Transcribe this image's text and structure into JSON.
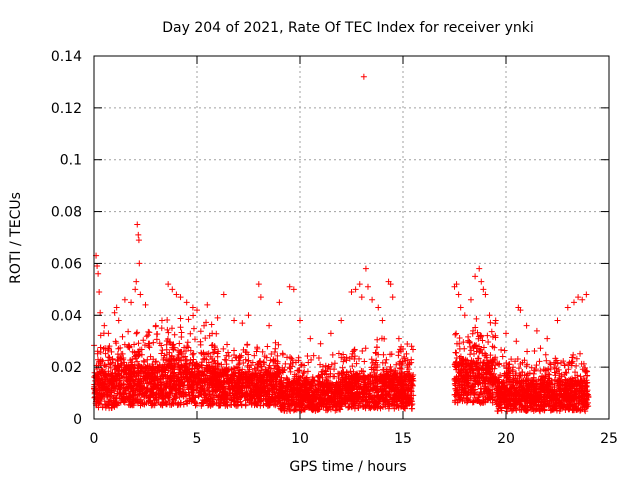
{
  "chart_data": {
    "type": "scatter",
    "title": "Day 204 of 2021, Rate Of TEC Index for receiver ynki",
    "xlabel": "GPS time / hours",
    "ylabel": "ROTI / TECUs",
    "xlim": [
      0,
      25
    ],
    "ylim": [
      0,
      0.14
    ],
    "xticks": [
      0,
      5,
      10,
      15,
      20,
      25
    ],
    "yticks": [
      0,
      0.02,
      0.04,
      0.06,
      0.08,
      0.1,
      0.12,
      0.14
    ],
    "xtick_labels": [
      "0",
      "5",
      "10",
      "15",
      "20",
      "25"
    ],
    "ytick_labels": [
      "0",
      "0.02",
      "0.04",
      "0.06",
      "0.08",
      "0.1",
      "0.12",
      "0.14"
    ],
    "grid": true,
    "marker": "+",
    "color": "#ff0000",
    "series": [
      {
        "name": "ROTI",
        "points": [
          [
            0.1,
            0.063
          ],
          [
            0.15,
            0.059
          ],
          [
            0.2,
            0.056
          ],
          [
            0.25,
            0.049
          ],
          [
            0.3,
            0.041
          ],
          [
            0.5,
            0.036
          ],
          [
            0.7,
            0.033
          ],
          [
            1.0,
            0.041
          ],
          [
            1.1,
            0.043
          ],
          [
            1.2,
            0.038
          ],
          [
            1.5,
            0.046
          ],
          [
            1.8,
            0.045
          ],
          [
            2.0,
            0.05
          ],
          [
            2.05,
            0.053
          ],
          [
            2.1,
            0.075
          ],
          [
            2.15,
            0.071
          ],
          [
            2.18,
            0.069
          ],
          [
            2.2,
            0.06
          ],
          [
            2.25,
            0.048
          ],
          [
            2.5,
            0.044
          ],
          [
            3.0,
            0.036
          ],
          [
            3.3,
            0.038
          ],
          [
            3.6,
            0.052
          ],
          [
            3.8,
            0.05
          ],
          [
            4.0,
            0.048
          ],
          [
            4.2,
            0.047
          ],
          [
            4.5,
            0.045
          ],
          [
            4.8,
            0.043
          ],
          [
            5.0,
            0.042
          ],
          [
            5.5,
            0.044
          ],
          [
            6.0,
            0.039
          ],
          [
            6.3,
            0.048
          ],
          [
            6.8,
            0.038
          ],
          [
            7.2,
            0.037
          ],
          [
            7.5,
            0.04
          ],
          [
            8.0,
            0.052
          ],
          [
            8.1,
            0.047
          ],
          [
            8.5,
            0.036
          ],
          [
            9.0,
            0.045
          ],
          [
            9.5,
            0.051
          ],
          [
            9.7,
            0.05
          ],
          [
            10.0,
            0.038
          ],
          [
            10.5,
            0.031
          ],
          [
            11.0,
            0.029
          ],
          [
            11.5,
            0.033
          ],
          [
            12.0,
            0.038
          ],
          [
            12.5,
            0.049
          ],
          [
            12.7,
            0.05
          ],
          [
            12.9,
            0.052
          ],
          [
            13.0,
            0.047
          ],
          [
            13.1,
            0.132
          ],
          [
            13.2,
            0.058
          ],
          [
            13.3,
            0.051
          ],
          [
            13.5,
            0.046
          ],
          [
            13.8,
            0.043
          ],
          [
            14.0,
            0.038
          ],
          [
            14.3,
            0.053
          ],
          [
            14.4,
            0.052
          ],
          [
            14.5,
            0.047
          ],
          [
            14.8,
            0.031
          ],
          [
            15.0,
            0.027
          ],
          [
            15.3,
            0.021
          ],
          [
            17.5,
            0.051
          ],
          [
            17.6,
            0.052
          ],
          [
            17.7,
            0.048
          ],
          [
            17.8,
            0.043
          ],
          [
            18.0,
            0.04
          ],
          [
            18.3,
            0.046
          ],
          [
            18.5,
            0.055
          ],
          [
            18.7,
            0.058
          ],
          [
            18.8,
            0.053
          ],
          [
            18.9,
            0.05
          ],
          [
            19.0,
            0.048
          ],
          [
            19.2,
            0.04
          ],
          [
            19.5,
            0.038
          ],
          [
            20.0,
            0.033
          ],
          [
            20.5,
            0.03
          ],
          [
            20.6,
            0.043
          ],
          [
            20.7,
            0.042
          ],
          [
            21.0,
            0.036
          ],
          [
            21.5,
            0.034
          ],
          [
            22.0,
            0.031
          ],
          [
            22.5,
            0.038
          ],
          [
            23.0,
            0.043
          ],
          [
            23.3,
            0.045
          ],
          [
            23.5,
            0.047
          ],
          [
            23.7,
            0.046
          ],
          [
            23.9,
            0.048
          ]
        ],
        "bands": [
          {
            "x": [
              0.0,
              1.0
            ],
            "base": [
              0.004,
              0.018
            ],
            "spread": 0.016
          },
          {
            "x": [
              1.0,
              2.5
            ],
            "base": [
              0.005,
              0.021
            ],
            "spread": 0.018
          },
          {
            "x": [
              2.5,
              6.0
            ],
            "base": [
              0.005,
              0.021
            ],
            "spread": 0.02
          },
          {
            "x": [
              6.0,
              9.0
            ],
            "base": [
              0.005,
              0.018
            ],
            "spread": 0.014
          },
          {
            "x": [
              9.0,
              12.0
            ],
            "base": [
              0.003,
              0.014
            ],
            "spread": 0.012
          },
          {
            "x": [
              12.0,
              15.5
            ],
            "base": [
              0.004,
              0.017
            ],
            "spread": 0.016
          },
          {
            "x": [
              17.5,
              19.5
            ],
            "base": [
              0.006,
              0.022
            ],
            "spread": 0.018
          },
          {
            "x": [
              19.5,
              24.0
            ],
            "base": [
              0.003,
              0.015
            ],
            "spread": 0.013
          }
        ]
      }
    ]
  }
}
